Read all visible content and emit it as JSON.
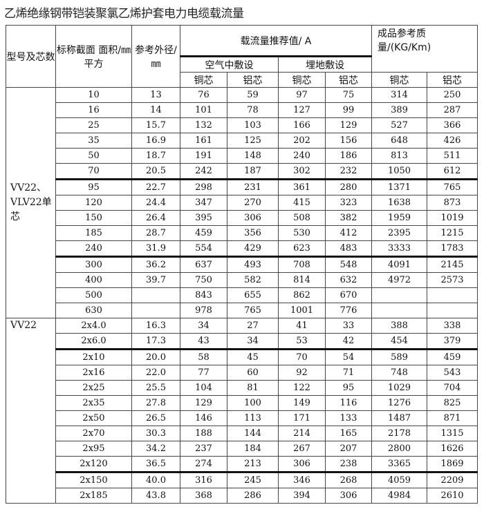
{
  "title": "乙烯绝缘钢带铠装聚氯乙烯护套电力电缆载流量",
  "header": {
    "model": "型号及芯数",
    "section": "标称截面 面积/㎜平方",
    "diameter": "参考外径/ ㎜",
    "current": "载流量推荐值/ A",
    "air": "空气中敷设",
    "buried": "埋地敷设",
    "weight": "成品参考质量/(KG/Km)",
    "copper": "铜芯",
    "aluminum": "铝芯"
  },
  "groups": [
    {
      "model": "VV22、VLV22单芯",
      "rows": [
        [
          "10",
          "13",
          "76",
          "59",
          "97",
          "75",
          "314",
          "250"
        ],
        [
          "16",
          "14",
          "101",
          "78",
          "127",
          "99",
          "389",
          "287"
        ],
        [
          "25",
          "15.7",
          "132",
          "103",
          "166",
          "129",
          "527",
          "366"
        ],
        [
          "35",
          "16.9",
          "161",
          "125",
          "202",
          "156",
          "648",
          "426"
        ],
        [
          "50",
          "18.7",
          "191",
          "148",
          "240",
          "186",
          "813",
          "511"
        ],
        [
          "70",
          "20.5",
          "242",
          "187",
          "302",
          "232",
          "1050",
          "612"
        ],
        [
          "95",
          "22.7",
          "298",
          "231",
          "361",
          "280",
          "1371",
          "765"
        ],
        [
          "120",
          "24.4",
          "347",
          "270",
          "415",
          "323",
          "1638",
          "873"
        ],
        [
          "150",
          "26.4",
          "395",
          "306",
          "508",
          "382",
          "1959",
          "1019"
        ],
        [
          "185",
          "28.7",
          "459",
          "356",
          "530",
          "412",
          "2395",
          "1215"
        ],
        [
          "240",
          "31.9",
          "554",
          "429",
          "623",
          "483",
          "3333",
          "1783"
        ],
        [
          "300",
          "36.2",
          "637",
          "493",
          "708",
          "548",
          "4091",
          "2145"
        ],
        [
          "400",
          "39.7",
          "750",
          "582",
          "814",
          "632",
          "4972",
          "2573"
        ],
        [
          "500",
          "",
          "843",
          "655",
          "862",
          "670",
          "",
          ""
        ],
        [
          "630",
          "",
          "978",
          "765",
          "1001",
          "776",
          "",
          ""
        ]
      ]
    },
    {
      "model": "VV22",
      "rows": [
        [
          "2x4.0",
          "16.3",
          "34",
          "27",
          "41",
          "33",
          "388",
          "338"
        ],
        [
          "2x6.0",
          "17.3",
          "43",
          "34",
          "53",
          "42",
          "454",
          "379"
        ],
        [
          "2x10",
          "20.0",
          "58",
          "45",
          "70",
          "54",
          "589",
          "459"
        ],
        [
          "2x16",
          "22.0",
          "77",
          "60",
          "92",
          "71",
          "748",
          "543"
        ],
        [
          "2x25",
          "25.5",
          "104",
          "81",
          "122",
          "95",
          "1029",
          "704"
        ],
        [
          "2x35",
          "27.8",
          "129",
          "100",
          "149",
          "116",
          "1276",
          "825"
        ],
        [
          "2x50",
          "26.5",
          "146",
          "113",
          "171",
          "133",
          "1487",
          "871"
        ],
        [
          "2x70",
          "30.3",
          "188",
          "144",
          "214",
          "165",
          "2178",
          "1315"
        ],
        [
          "2x95",
          "34.2",
          "237",
          "184",
          "267",
          "207",
          "2800",
          "1626"
        ],
        [
          "2x120",
          "36.5",
          "274",
          "213",
          "306",
          "238",
          "3365",
          "1869"
        ],
        [
          "2x150",
          "40.0",
          "316",
          "245",
          "346",
          "268",
          "4059",
          "2209"
        ],
        [
          "2x185",
          "43.8",
          "368",
          "286",
          "394",
          "306",
          "4984",
          "2610"
        ]
      ]
    }
  ]
}
